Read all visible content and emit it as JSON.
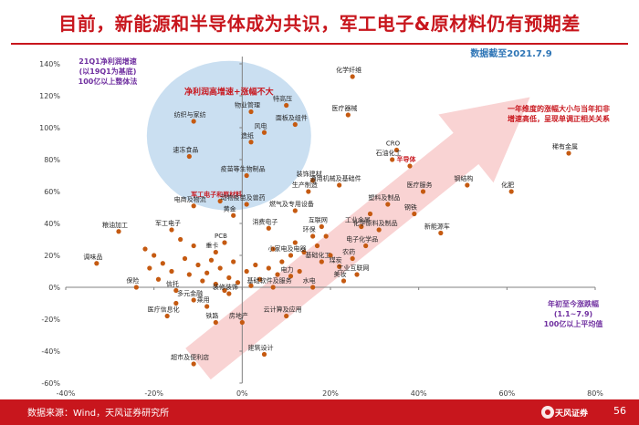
{
  "header": {
    "title": "目前，新能源和半导体成为共识，军工电子&原材料仍有预期差",
    "date_note": "数据截至2021.7.9"
  },
  "footer": {
    "source": "数据来源：Wind，天风证券研究所",
    "page_number": "56",
    "logo_text": "天风证券"
  },
  "colors": {
    "accent": "#c8161d",
    "point": "#c55a11",
    "blue_note": "#2e75b6",
    "purple_note": "#7030a0",
    "circle_fill": "#bdd7ee",
    "arrow_fill": "#f8cbcb"
  },
  "chart_data": {
    "type": "scatter",
    "xlim": [
      -40,
      80
    ],
    "ylim": [
      -60,
      140
    ],
    "x_ticks": [
      "-40%",
      "-20%",
      "0%",
      "20%",
      "40%",
      "60%",
      "80%"
    ],
    "y_ticks": [
      "140%",
      "120%",
      "100%",
      "80%",
      "60%",
      "40%",
      "20%",
      "0%",
      "-20%",
      "-40%",
      "-60%"
    ],
    "x_tick_values": [
      -40,
      -20,
      0,
      20,
      40,
      60,
      80
    ],
    "y_tick_values": [
      140,
      120,
      100,
      80,
      60,
      40,
      20,
      0,
      -20,
      -40,
      -60
    ],
    "xlabel": "年初至今涨跌幅\n(1.1~7.9)\n100亿以上平均值",
    "ylabel": "21Q1净利润增速\n(以19Q1为基底)\n100亿以上整体法",
    "annotations": {
      "circle_label": "净利润高增速+涨幅不大",
      "military": "军工电子和原材料",
      "semiconductor": "半导体",
      "arrow_note": "一年维度的涨幅大小与当年扣非\n增速高低，呈现单调正相关关系"
    },
    "points": [
      {
        "label": "化学纤维",
        "x": 25,
        "y": 132
      },
      {
        "label": "医疗器械",
        "x": 24,
        "y": 108
      },
      {
        "label": "特高压",
        "x": 10,
        "y": 114
      },
      {
        "label": "物业管理",
        "x": 2,
        "y": 110
      },
      {
        "label": "纺织与家纺",
        "x": -11,
        "y": 104
      },
      {
        "label": "面板及组件",
        "x": 12,
        "y": 102
      },
      {
        "label": "风电",
        "x": 5,
        "y": 97
      },
      {
        "label": "造纸",
        "x": 2,
        "y": 91
      },
      {
        "label": "速冻食品",
        "x": -12,
        "y": 82
      },
      {
        "label": "CRO",
        "x": 35,
        "y": 86
      },
      {
        "label": "石油化工",
        "x": 34,
        "y": 80
      },
      {
        "label": "半导体",
        "x": 38,
        "y": 76
      },
      {
        "label": "稀有金属",
        "x": 74,
        "y": 84
      },
      {
        "label": "疫苗等生物制品",
        "x": 1,
        "y": 70
      },
      {
        "label": "装饰建材",
        "x": 16,
        "y": 67
      },
      {
        "label": "通用机械及基础件",
        "x": 22,
        "y": 64
      },
      {
        "label": "生产制造",
        "x": 15,
        "y": 60
      },
      {
        "label": "钢结构",
        "x": 51,
        "y": 64
      },
      {
        "label": "化肥",
        "x": 61,
        "y": 60
      },
      {
        "label": "医疗服务",
        "x": 41,
        "y": 60
      },
      {
        "label": "军工电子和原材料",
        "x": -5,
        "y": 54
      },
      {
        "label": "电商及物流",
        "x": -11,
        "y": 51
      },
      {
        "label": "动物疫苗及兽药",
        "x": 1,
        "y": 52
      },
      {
        "label": "塑料及制品",
        "x": 33,
        "y": 52
      },
      {
        "label": "钢铁",
        "x": 39,
        "y": 46
      },
      {
        "label": "燃气及专用设备",
        "x": 12,
        "y": 48
      },
      {
        "label": "黄金",
        "x": -2,
        "y": 45
      },
      {
        "label": "工业金属",
        "x": 27,
        "y": 38
      },
      {
        "label": "化学原料及制品",
        "x": 31,
        "y": 36
      },
      {
        "label": "新能源车",
        "x": 45,
        "y": 34
      },
      {
        "label": "消费电子",
        "x": 6,
        "y": 37
      },
      {
        "label": "互联网",
        "x": 18,
        "y": 38
      },
      {
        "label": "粮油加工",
        "x": -28,
        "y": 35
      },
      {
        "label": "军工电子",
        "x": -16,
        "y": 36
      },
      {
        "label": "环保",
        "x": 16,
        "y": 32
      },
      {
        "label": "电子化学品",
        "x": 28,
        "y": 26
      },
      {
        "label": "PCB",
        "x": -4,
        "y": 28
      },
      {
        "label": "重卡",
        "x": -6,
        "y": 22
      },
      {
        "label": "小家电及电器",
        "x": 11,
        "y": 20
      },
      {
        "label": "农药",
        "x": 25,
        "y": 18
      },
      {
        "label": "调味品",
        "x": -33,
        "y": 15
      },
      {
        "label": "基础化工",
        "x": 18,
        "y": 16
      },
      {
        "label": "煤炭",
        "x": 22,
        "y": 13
      },
      {
        "label": "电力",
        "x": 11,
        "y": 7
      },
      {
        "label": "工业互联网",
        "x": 26,
        "y": 8
      },
      {
        "label": "美妆",
        "x": 23,
        "y": 4
      },
      {
        "label": "保险",
        "x": -24,
        "y": 0
      },
      {
        "label": "基础软件及服务",
        "x": 7,
        "y": 0
      },
      {
        "label": "水电",
        "x": 16,
        "y": 0
      },
      {
        "label": "信托",
        "x": -15,
        "y": -2
      },
      {
        "label": "装修装饰",
        "x": -3,
        "y": -4
      },
      {
        "label": "多元金融",
        "x": -11,
        "y": -8
      },
      {
        "label": "乘用",
        "x": -8,
        "y": -12
      },
      {
        "label": "医疗信息化",
        "x": -17,
        "y": -18
      },
      {
        "label": "铁路",
        "x": -6,
        "y": -22
      },
      {
        "label": "房地产",
        "x": 0,
        "y": -22
      },
      {
        "label": "云计算及应用",
        "x": 10,
        "y": -18
      },
      {
        "label": "超市及便利店",
        "x": -11,
        "y": -48
      },
      {
        "label": "建筑设计",
        "x": 5,
        "y": -42
      },
      {
        "label": "",
        "x": -22,
        "y": 24
      },
      {
        "label": "",
        "x": -20,
        "y": 20
      },
      {
        "label": "",
        "x": -18,
        "y": 15
      },
      {
        "label": "",
        "x": -16,
        "y": 10
      },
      {
        "label": "",
        "x": -13,
        "y": 18
      },
      {
        "label": "",
        "x": -12,
        "y": 8
      },
      {
        "label": "",
        "x": -10,
        "y": 14
      },
      {
        "label": "",
        "x": -9,
        "y": 4
      },
      {
        "label": "",
        "x": -8,
        "y": 9
      },
      {
        "label": "",
        "x": -7,
        "y": 17
      },
      {
        "label": "",
        "x": -6,
        "y": 2
      },
      {
        "label": "",
        "x": -5,
        "y": 12
      },
      {
        "label": "",
        "x": -4,
        "y": -2
      },
      {
        "label": "",
        "x": -3,
        "y": 6
      },
      {
        "label": "",
        "x": -2,
        "y": 16
      },
      {
        "label": "",
        "x": -1,
        "y": 3
      },
      {
        "label": "",
        "x": 1,
        "y": 10
      },
      {
        "label": "",
        "x": 2,
        "y": 1
      },
      {
        "label": "",
        "x": 3,
        "y": 14
      },
      {
        "label": "",
        "x": 4,
        "y": 5
      },
      {
        "label": "",
        "x": 6,
        "y": 12
      },
      {
        "label": "",
        "x": 8,
        "y": 8
      },
      {
        "label": "",
        "x": 9,
        "y": 16
      },
      {
        "label": "",
        "x": 13,
        "y": 10
      },
      {
        "label": "",
        "x": 14,
        "y": 22
      },
      {
        "label": "",
        "x": 17,
        "y": 26
      },
      {
        "label": "",
        "x": 20,
        "y": 20
      },
      {
        "label": "",
        "x": -14,
        "y": 30
      },
      {
        "label": "",
        "x": -11,
        "y": 26
      },
      {
        "label": "",
        "x": -15,
        "y": -10
      },
      {
        "label": "",
        "x": -19,
        "y": 5
      },
      {
        "label": "",
        "x": -21,
        "y": 12
      },
      {
        "label": "",
        "x": 12,
        "y": 28
      },
      {
        "label": "",
        "x": 7,
        "y": 24
      },
      {
        "label": "",
        "x": 19,
        "y": 32
      },
      {
        "label": "",
        "x": 29,
        "y": 46
      }
    ]
  }
}
